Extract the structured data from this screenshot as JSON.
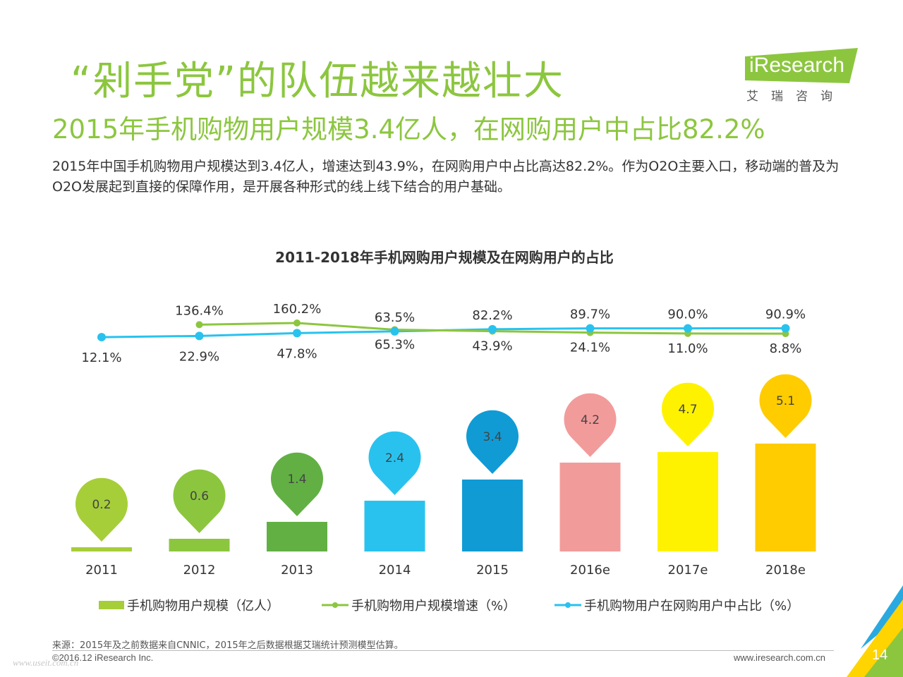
{
  "header": {
    "title": "“剁手党”的队伍越来越壮大",
    "subtitle": "2015年手机购物用户规模3.4亿人，在网购用户中占比82.2%"
  },
  "logo": {
    "brand": "iResearch",
    "cn": "艾瑞咨询"
  },
  "description": "2015年中国手机购物用户规模达到3.4亿人，增速达到43.9%，在网购用户中占比高达82.2%。作为O2O主要入口，移动端的普及为O2O发展起到直接的保障作用，是开展各种形式的线上线下结合的用户基础。",
  "chart_data": {
    "type": "bar",
    "title": "2011-2018年手机网购用户规模及在网购用户的占比",
    "categories": [
      "2011",
      "2012",
      "2013",
      "2014",
      "2015",
      "2016e",
      "2017e",
      "2018e"
    ],
    "series": [
      {
        "name": "手机购物用户规模（亿人）",
        "type": "bar",
        "values": [
          0.2,
          0.6,
          1.4,
          2.4,
          3.4,
          4.2,
          4.7,
          5.1
        ],
        "labels": [
          "0.2",
          "0.6",
          "1.4",
          "2.4",
          "3.4",
          "4.2",
          "4.7",
          "5.1"
        ],
        "colors": [
          "#a6ce39",
          "#8cc63f",
          "#62b044",
          "#29c2ef",
          "#109bd5",
          "#f29b9b",
          "#fff200",
          "#ffcc00"
        ]
      },
      {
        "name": "手机购物用户规模增速（%）",
        "type": "line",
        "color": "#8cc63f",
        "values": [
          null,
          136.4,
          160.2,
          65.3,
          43.9,
          24.1,
          11.0,
          8.8
        ],
        "labels": [
          "",
          "136.4%",
          "160.2%",
          "65.3%",
          "43.9%",
          "24.1%",
          "11.0%",
          "8.8%"
        ]
      },
      {
        "name": "手机购物用户在网购用户中占比（%）",
        "type": "line",
        "color": "#29c2ef",
        "values": [
          12.1,
          22.9,
          47.8,
          63.5,
          82.2,
          89.7,
          90.0,
          90.9
        ],
        "labels": [
          "12.1%",
          "22.9%",
          "47.8%",
          "63.5%",
          "82.2%",
          "89.7%",
          "90.0%",
          "90.9%"
        ]
      }
    ]
  },
  "footer": {
    "source": "来源：2015年及之前数据来自CNNIC，2015年之后数据根据艾瑞统计预测模型估算。",
    "copyright": "©2016.12 iResearch Inc.",
    "website": "www.iresearch.com.cn",
    "watermark": "www.useit.com.cn",
    "page": "14"
  },
  "colors": {
    "accent": "#8cc63f",
    "blue": "#29c2ef",
    "corner_green": "#8cc63f",
    "corner_yellow": "#ffd400",
    "corner_blue": "#29a9e0"
  }
}
